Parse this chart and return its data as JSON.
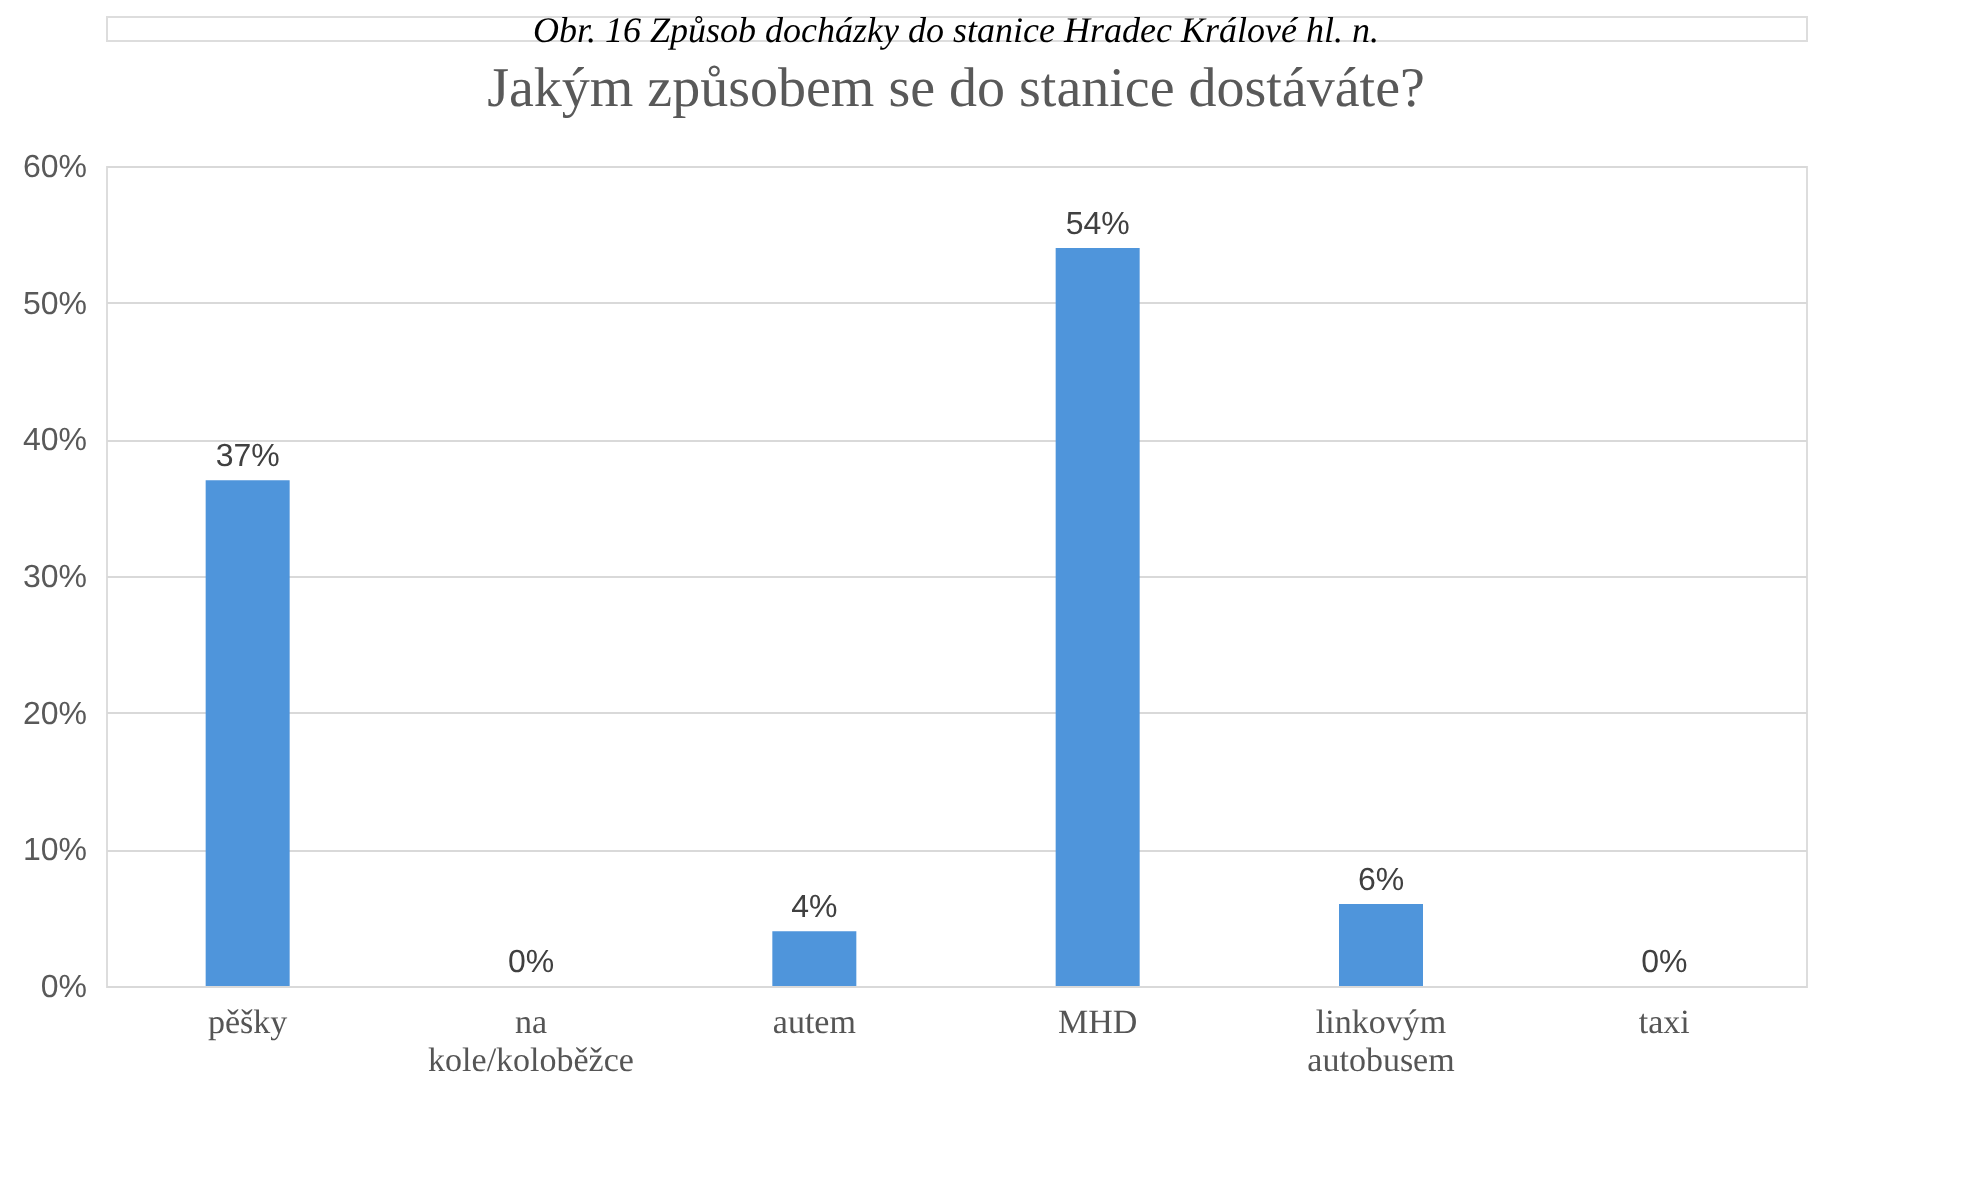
{
  "chart_data": {
    "type": "bar",
    "title": "Jakým způsobem se do stanice dostáváte?",
    "annotations": [
      "Obr. 16 Způsob docházky do stanice Hradec Králové hl. n."
    ],
    "categories": [
      "pěšky",
      "na kole/koloběžce",
      "autem",
      "MHD",
      "linkovým autobusem",
      "taxi"
    ],
    "values": [
      37,
      0,
      4,
      54,
      6,
      0
    ],
    "color": "#4f95db",
    "ylim": [
      0,
      60
    ],
    "yticks": [
      {
        "value": 0,
        "label": "0%"
      },
      {
        "value": 10,
        "label": "10%"
      },
      {
        "value": 20,
        "label": "20%"
      },
      {
        "value": 30,
        "label": "30%"
      },
      {
        "value": 40,
        "label": "40%"
      },
      {
        "value": 50,
        "label": "50%"
      },
      {
        "value": 60,
        "label": "60%"
      }
    ],
    "value_labels": [
      "37%",
      "0%",
      "4%",
      "54%",
      "6%",
      "0%"
    ],
    "grid": "y"
  }
}
